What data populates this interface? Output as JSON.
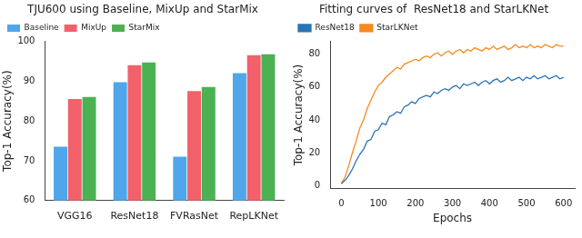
{
  "chart_data": [
    {
      "type": "bar",
      "title": "TJU600 using Baseline, MixUp and StarMix",
      "y_label": "Top-1 Accuracy(%)",
      "categories": [
        "VGG16",
        "ResNet18",
        "FVRasNet",
        "RepLKNet"
      ],
      "series": [
        {
          "name": "Baseline",
          "color": "#4fa6ea",
          "values": [
            73.5,
            89.7,
            71,
            92
          ]
        },
        {
          "name": "MixUp",
          "color": "#f2616b",
          "values": [
            85.5,
            94,
            87.5,
            96.5
          ]
        },
        {
          "name": "StarMix",
          "color": "#4cb153",
          "values": [
            86,
            94.7,
            88.5,
            96.7
          ]
        }
      ],
      "ylim": [
        60,
        100
      ],
      "yticks": [
        60,
        70,
        80,
        90,
        100
      ],
      "grid": false,
      "legend": "upper left"
    },
    {
      "type": "line",
      "title": "Fitting curves of  ResNet18 and StarLKNet",
      "x_label": "Epochs",
      "y_label": "Top-1 Accuracy(%)",
      "x": [
        0,
        10,
        20,
        30,
        40,
        50,
        60,
        70,
        80,
        90,
        100,
        110,
        120,
        130,
        140,
        150,
        160,
        170,
        180,
        190,
        200,
        210,
        220,
        230,
        240,
        250,
        260,
        270,
        280,
        290,
        300,
        310,
        320,
        330,
        340,
        350,
        360,
        370,
        380,
        390,
        400,
        410,
        420,
        430,
        440,
        450,
        460,
        470,
        480,
        490,
        500,
        510,
        520,
        530,
        540,
        550,
        560,
        570,
        580,
        590,
        600
      ],
      "series": [
        {
          "name": "ResNet18",
          "color": "#2c73b4",
          "values": [
            1,
            3,
            6,
            10,
            15,
            19,
            22,
            27,
            28,
            33,
            34,
            38,
            37,
            42,
            43,
            45,
            44,
            48,
            49,
            51,
            50,
            53,
            54,
            55,
            54,
            57,
            56,
            58,
            59,
            58,
            60,
            61,
            59,
            62,
            61,
            62,
            63,
            61,
            63,
            64,
            62,
            64,
            65,
            63,
            64,
            66,
            64,
            65,
            66,
            64,
            66,
            65,
            67,
            65,
            66,
            67,
            65,
            66,
            67,
            65,
            66
          ]
        },
        {
          "name": "StarLKNet",
          "color": "#f5891f",
          "values": [
            1,
            5,
            12,
            20,
            27,
            35,
            40,
            47,
            52,
            57,
            61,
            63,
            66,
            68,
            70,
            72,
            71,
            74,
            75,
            76,
            77,
            76,
            78,
            79,
            78,
            80,
            81,
            79,
            81,
            82,
            80,
            82,
            83,
            81,
            83,
            82,
            84,
            83,
            82,
            84,
            83,
            85,
            83,
            84,
            85,
            83,
            84,
            86,
            84,
            85,
            84,
            86,
            84,
            85,
            84,
            86,
            85,
            84,
            86,
            85,
            85
          ]
        }
      ],
      "xlim": [
        -30,
        630
      ],
      "xticks": [
        0,
        100,
        200,
        300,
        400,
        500,
        600
      ],
      "ylim": [
        -2,
        88
      ],
      "yticks": [
        0,
        20,
        40,
        60,
        80
      ],
      "grid": false,
      "legend": "upper left"
    }
  ]
}
